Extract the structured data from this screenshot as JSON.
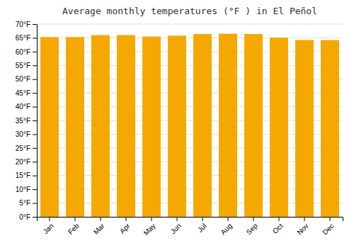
{
  "chart_data": {
    "type": "bar",
    "title": "Average monthly temperatures (°F ) in El Peñol",
    "categories": [
      "Jan",
      "Feb",
      "Mar",
      "Apr",
      "May",
      "Jun",
      "Jul",
      "Aug",
      "Sep",
      "Oct",
      "Nov",
      "Dec"
    ],
    "values": [
      65.3,
      65.3,
      66.0,
      66.0,
      65.5,
      65.8,
      66.4,
      66.5,
      66.4,
      65.1,
      64.2,
      64.2
    ],
    "color": "#F5A800",
    "ylim": [
      0,
      70
    ],
    "yticks": [
      {
        "value": 0,
        "label": "0°F"
      },
      {
        "value": 5,
        "label": "5°F"
      },
      {
        "value": 10,
        "label": "10°F"
      },
      {
        "value": 15,
        "label": "15°F"
      },
      {
        "value": 20,
        "label": "20°F"
      },
      {
        "value": 25,
        "label": "25°F"
      },
      {
        "value": 30,
        "label": "30°F"
      },
      {
        "value": 35,
        "label": "35°F"
      },
      {
        "value": 40,
        "label": "40°F"
      },
      {
        "value": 45,
        "label": "45°F"
      },
      {
        "value": 50,
        "label": "50°F"
      },
      {
        "value": 55,
        "label": "55°F"
      },
      {
        "value": 60,
        "label": "60°F"
      },
      {
        "value": 65,
        "label": "65°F"
      },
      {
        "value": 70,
        "label": "70°F"
      }
    ],
    "grid": true
  }
}
